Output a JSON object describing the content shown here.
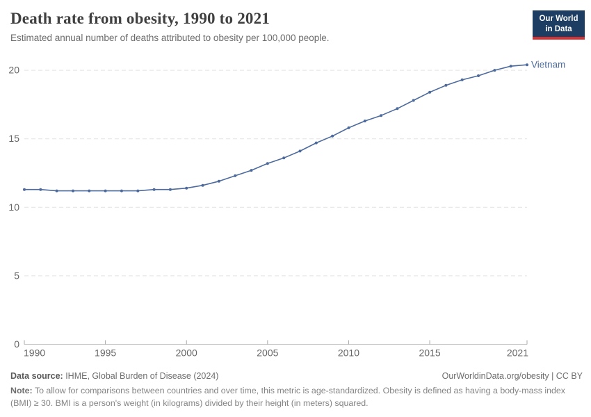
{
  "header": {
    "title": "Death rate from obesity, 1990 to 2021",
    "subtitle": "Estimated annual number of deaths attributed to obesity per 100,000 people."
  },
  "logo": {
    "line1": "Our World",
    "line2": "in Data",
    "bg_color": "#1d3d63",
    "bar_color": "#cf3335"
  },
  "chart_data": {
    "type": "line",
    "title": "Death rate from obesity, 1990 to 2021",
    "xlabel": "",
    "ylabel": "",
    "xlim": [
      1990,
      2021
    ],
    "ylim": [
      0,
      20
    ],
    "grid": "horizontal-dashed",
    "legend_position": "end-of-line-label",
    "x_ticks": [
      1990,
      1995,
      2000,
      2005,
      2010,
      2015,
      2021
    ],
    "y_ticks": [
      0,
      5,
      10,
      15,
      20
    ],
    "x": [
      1990,
      1991,
      1992,
      1993,
      1994,
      1995,
      1996,
      1997,
      1998,
      1999,
      2000,
      2001,
      2002,
      2003,
      2004,
      2005,
      2006,
      2007,
      2008,
      2009,
      2010,
      2011,
      2012,
      2013,
      2014,
      2015,
      2016,
      2017,
      2018,
      2019,
      2020,
      2021
    ],
    "series": [
      {
        "name": "Vietnam",
        "color": "#4c6a9c",
        "values": [
          11.3,
          11.3,
          11.2,
          11.2,
          11.2,
          11.2,
          11.2,
          11.2,
          11.3,
          11.3,
          11.4,
          11.6,
          11.9,
          12.3,
          12.7,
          13.2,
          13.6,
          14.1,
          14.7,
          15.2,
          15.8,
          16.3,
          16.7,
          17.2,
          17.8,
          18.4,
          18.9,
          19.3,
          19.6,
          20.0,
          20.3,
          20.4
        ]
      }
    ],
    "axis_colors": {
      "gridline": "#e2e2e2",
      "baseline": "#c8c8c8",
      "tick": "#a8a8a8",
      "tick_label": "#666666"
    }
  },
  "footer": {
    "datasource_label": "Data source:",
    "datasource_text": " IHME, Global Burden of Disease (2024)",
    "link": "OurWorldinData.org/obesity | CC BY",
    "note_label": "Note:",
    "note_text": " To allow for comparisons between countries and over time, this metric is age-standardized. Obesity is defined as having a body-mass index (BMI) ≥ 30. BMI is a person's weight (in kilograms) divided by their height (in meters) squared."
  }
}
